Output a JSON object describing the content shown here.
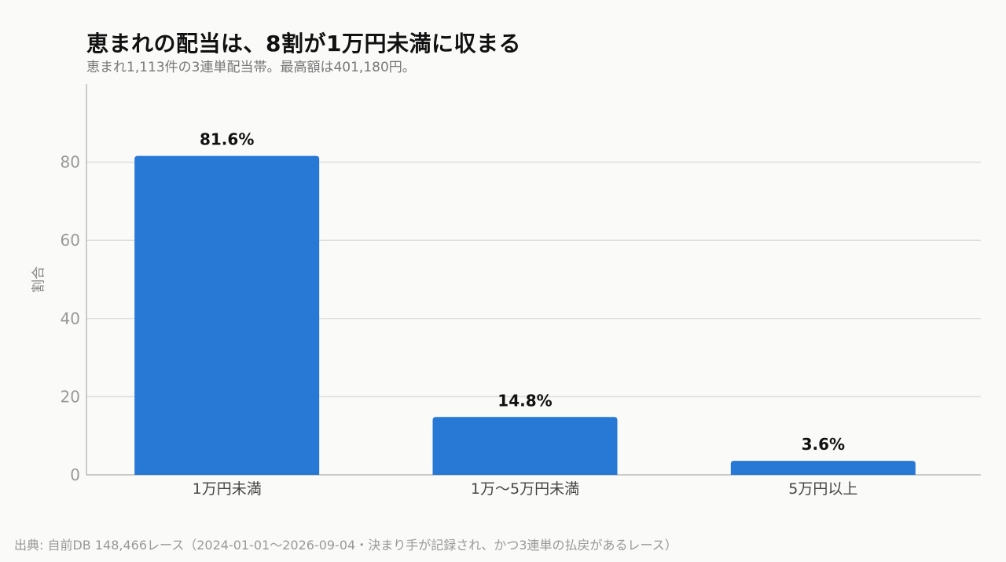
{
  "chart_data": {
    "type": "bar",
    "title": "恵まれの配当は、8割が1万円未満に収まる",
    "subtitle": "恵まれ1,113件の3連単配当帯。最高額は401,180円。",
    "xlabel": "",
    "ylabel": "割合",
    "categories": [
      "1万円未満",
      "1万〜5万円未満",
      "5万円以上"
    ],
    "values": [
      81.6,
      14.8,
      3.6
    ],
    "data_labels": [
      "81.6%",
      "14.8%",
      "3.6%"
    ],
    "ylim": [
      0,
      100
    ],
    "yticks": [
      0,
      20,
      40,
      60,
      80
    ],
    "grid": true,
    "bar_color": "#2878d6",
    "grid_color": "#dddddd",
    "axis_color": "#bbbbbb"
  },
  "footer": {
    "source": "出典: 自前DB 148,466レース（2024-01-01〜2026-09-04・決まり手が記録され、かつ3連単の払戻があるレース）"
  }
}
